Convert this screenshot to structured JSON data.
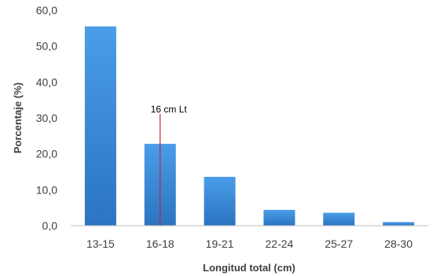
{
  "chart_data": {
    "type": "bar",
    "title": "",
    "xlabel": "Longitud total (cm)",
    "ylabel": "Porcentaje (%)",
    "categories": [
      "13-15",
      "16-18",
      "19-21",
      "22-24",
      "25-27",
      "28-30"
    ],
    "values": [
      55.5,
      22.8,
      13.6,
      4.4,
      3.6,
      1.0
    ],
    "ylim": [
      0,
      60
    ],
    "yticks": [
      "0,0",
      "10,0",
      "20,0",
      "30,0",
      "40,0",
      "50,0",
      "60,0"
    ],
    "grid": false,
    "legend": "none",
    "annotation": {
      "label": "16 cm Lt",
      "x_value": 16
    },
    "colors": {
      "bar_top": "#4a9de8",
      "bar_bottom": "#2b74c2",
      "annotation_line": "#c0272d",
      "axis": "#bfbfbf"
    }
  }
}
